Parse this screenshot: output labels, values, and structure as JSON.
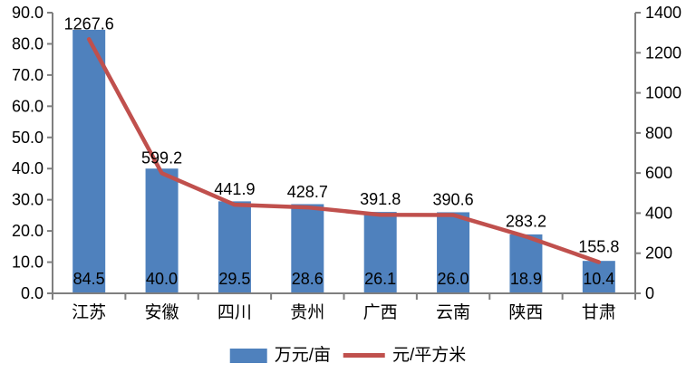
{
  "chart_data": {
    "type": "bar",
    "subtype": "bar-line-combo",
    "categories": [
      "江苏",
      "安徽",
      "四川",
      "贵州",
      "广西",
      "云南",
      "陕西",
      "甘肃"
    ],
    "series": [
      {
        "name": "万元/亩",
        "render": "bar",
        "axis": "left",
        "values": [
          84.5,
          40.0,
          29.5,
          28.6,
          26.1,
          26.0,
          18.9,
          10.4
        ],
        "labels": [
          "84.5",
          "40.0",
          "29.5",
          "28.6",
          "26.1",
          "26.0",
          "18.9",
          "10.4"
        ],
        "color": "#4F81BD"
      },
      {
        "name": "元/平方米",
        "render": "line",
        "axis": "right",
        "values": [
          1267.6,
          599.2,
          441.9,
          428.7,
          391.8,
          390.6,
          283.2,
          155.8
        ],
        "labels": [
          "1267.6",
          "599.2",
          "441.9",
          "428.7",
          "391.8",
          "390.6",
          "283.2",
          "155.8"
        ],
        "color": "#C0504D"
      }
    ],
    "left_axis": {
      "min": 0,
      "max": 90,
      "step": 10,
      "tick_labels": [
        "0.0",
        "10.0",
        "20.0",
        "30.0",
        "40.0",
        "50.0",
        "60.0",
        "70.0",
        "80.0",
        "90.0"
      ]
    },
    "right_axis": {
      "min": 0,
      "max": 1400,
      "step": 200,
      "tick_labels": [
        "0",
        "200",
        "400",
        "600",
        "800",
        "1000",
        "1200",
        "1400"
      ]
    },
    "legend": {
      "position": "bottom",
      "entries": [
        "万元/亩",
        "元/平方米"
      ]
    },
    "grid": false,
    "title": "",
    "xlabel": "",
    "ylabel": "",
    "colors": {
      "bar": "#4F81BD",
      "line": "#C0504D",
      "axis": "#7F7F7F",
      "text": "#000000",
      "background": "#FFFFFF"
    }
  }
}
